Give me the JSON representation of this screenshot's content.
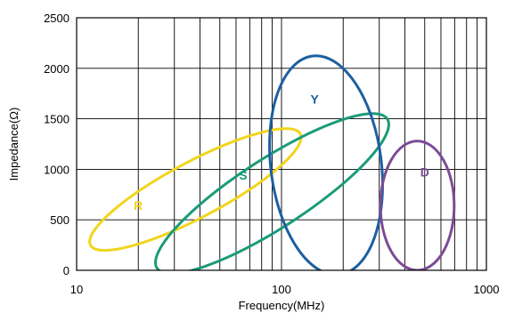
{
  "chart_data": {
    "type": "scatter",
    "title": "",
    "xlabel": "Frequency(MHz)",
    "ylabel": "Impedance(Ω)",
    "x_scale": "log",
    "xlim": [
      10,
      1000
    ],
    "ylim": [
      0,
      2500
    ],
    "x_ticks": [
      "10",
      "100",
      "1000"
    ],
    "y_ticks": [
      "0",
      "500",
      "1000",
      "1500",
      "2000",
      "2500"
    ],
    "grid": true,
    "legend": "none",
    "series": [
      {
        "name": "R",
        "color": "#f2d41c",
        "label_at": {
          "x": 20,
          "y": 600
        },
        "center": {
          "x": 38,
          "y": 800
        },
        "rx_decades": 0.58,
        "ry": 275,
        "angle_deg": -28
      },
      {
        "name": "S",
        "color": "#1a9b78",
        "label_at": {
          "x": 65,
          "y": 900
        },
        "center": {
          "x": 90,
          "y": 760
        },
        "rx_decades": 0.67,
        "ry": 340,
        "angle_deg": -33
      },
      {
        "name": "Y",
        "color": "#1d5fa0",
        "label_at": {
          "x": 145,
          "y": 1650
        },
        "center": {
          "x": 165,
          "y": 1040
        },
        "rx_decades": 0.27,
        "ry": 1090,
        "angle_deg": -7
      },
      {
        "name": "D",
        "color": "#7d4b94",
        "label_at": {
          "x": 500,
          "y": 930
        },
        "center": {
          "x": 460,
          "y": 640
        },
        "rx_decades": 0.18,
        "ry": 640,
        "angle_deg": 0
      }
    ]
  }
}
